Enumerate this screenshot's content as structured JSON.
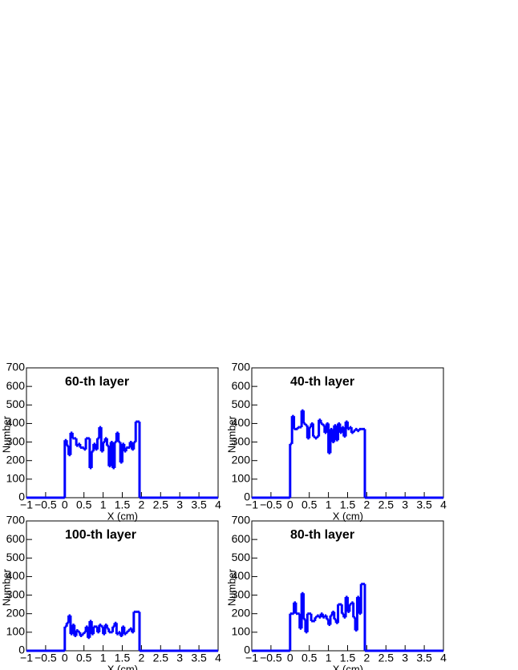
{
  "chart_data": [
    {
      "type": "histogram",
      "title": "60-th layer",
      "x_label": "X (cm)",
      "y_label": "Number",
      "color": "#0000ff",
      "bins": [
        -1,
        0,
        0.05,
        0.1,
        0.15,
        0.2,
        0.25,
        0.3,
        0.35,
        0.4,
        0.45,
        0.5,
        0.55,
        0.6,
        0.65,
        0.7,
        0.75,
        0.8,
        0.85,
        0.9,
        0.95,
        1,
        1.05,
        1.1,
        1.15,
        1.2,
        1.25,
        1.3,
        1.35,
        1.4,
        1.45,
        1.5,
        1.55,
        1.6,
        1.65,
        1.7,
        1.75,
        1.8,
        1.85,
        1.9,
        1.95,
        4
      ],
      "values": [
        0,
        310,
        280,
        230,
        350,
        320,
        320,
        280,
        290,
        270,
        270,
        260,
        320,
        320,
        160,
        250,
        290,
        260,
        320,
        380,
        250,
        300,
        320,
        280,
        170,
        300,
        160,
        300,
        350,
        300,
        190,
        290,
        250,
        270,
        270,
        300,
        260,
        300,
        410,
        410,
        0
      ],
      "xlim": [
        -1,
        4
      ],
      "ylim": [
        0,
        700
      ],
      "xticks": [
        {
          "value": -1,
          "label": "−1"
        },
        {
          "value": -0.5,
          "label": "−0.5"
        },
        0,
        0.5,
        1,
        1.5,
        2,
        2.5,
        3,
        3.5,
        4
      ],
      "yticks": [
        0,
        100,
        200,
        300,
        400,
        500,
        600,
        700
      ]
    },
    {
      "type": "histogram",
      "title": "40-th layer",
      "x_label": "X (cm)",
      "y_label": "Number",
      "color": "#0000ff",
      "bins": [
        -1,
        0,
        0.05,
        0.1,
        0.15,
        0.2,
        0.25,
        0.3,
        0.35,
        0.4,
        0.45,
        0.5,
        0.55,
        0.6,
        0.65,
        0.7,
        0.75,
        0.8,
        0.85,
        0.9,
        0.95,
        1,
        1.05,
        1.1,
        1.15,
        1.2,
        1.25,
        1.3,
        1.35,
        1.4,
        1.45,
        1.5,
        1.55,
        1.6,
        1.65,
        1.7,
        1.75,
        1.8,
        1.85,
        1.9,
        1.95,
        4
      ],
      "values": [
        0,
        290,
        440,
        370,
        370,
        380,
        380,
        470,
        400,
        390,
        320,
        380,
        400,
        330,
        320,
        330,
        420,
        400,
        390,
        350,
        400,
        240,
        370,
        300,
        390,
        310,
        400,
        350,
        380,
        330,
        410,
        370,
        380,
        350,
        360,
        370,
        360,
        370,
        370,
        370,
        0
      ],
      "xlim": [
        -1,
        4
      ],
      "ylim": [
        0,
        700
      ],
      "xticks": [
        {
          "value": -1,
          "label": "−1"
        },
        {
          "value": -0.5,
          "label": "−0.5"
        },
        0,
        0.5,
        1,
        1.5,
        2,
        2.5,
        3,
        3.5,
        4
      ],
      "yticks": [
        0,
        100,
        200,
        300,
        400,
        500,
        600,
        700
      ]
    },
    {
      "type": "histogram",
      "title": "100-th layer",
      "x_label": "X (cm)",
      "y_label": "Number",
      "color": "#0000ff",
      "bins": [
        -1,
        0,
        0.05,
        0.1,
        0.15,
        0.2,
        0.25,
        0.3,
        0.35,
        0.4,
        0.45,
        0.5,
        0.55,
        0.6,
        0.65,
        0.7,
        0.75,
        0.8,
        0.85,
        0.9,
        0.95,
        1,
        1.05,
        1.1,
        1.15,
        1.2,
        1.25,
        1.3,
        1.35,
        1.4,
        1.45,
        1.5,
        1.55,
        1.6,
        1.65,
        1.7,
        1.75,
        1.8,
        1.85,
        1.9,
        1.95,
        4
      ],
      "values": [
        0,
        130,
        150,
        190,
        90,
        140,
        80,
        110,
        100,
        80,
        90,
        100,
        130,
        70,
        160,
        90,
        130,
        130,
        100,
        140,
        130,
        90,
        140,
        120,
        100,
        100,
        130,
        150,
        90,
        100,
        80,
        130,
        90,
        100,
        110,
        120,
        100,
        210,
        210,
        210,
        0
      ],
      "xlim": [
        -1,
        4
      ],
      "ylim": [
        0,
        700
      ],
      "xticks": [
        {
          "value": -1,
          "label": "−1"
        },
        {
          "value": -0.5,
          "label": "−0.5"
        },
        0,
        0.5,
        1,
        1.5,
        2,
        2.5,
        3,
        3.5,
        4
      ],
      "yticks": [
        0,
        100,
        200,
        300,
        400,
        500,
        600,
        700
      ]
    },
    {
      "type": "histogram",
      "title": "80-th layer",
      "x_label": "X (cm)",
      "y_label": "Number",
      "color": "#0000ff",
      "bins": [
        -1,
        0,
        0.05,
        0.1,
        0.15,
        0.2,
        0.25,
        0.3,
        0.35,
        0.4,
        0.45,
        0.5,
        0.55,
        0.6,
        0.65,
        0.7,
        0.75,
        0.8,
        0.85,
        0.9,
        0.95,
        1,
        1.05,
        1.1,
        1.15,
        1.2,
        1.25,
        1.3,
        1.35,
        1.4,
        1.45,
        1.5,
        1.55,
        1.6,
        1.65,
        1.7,
        1.75,
        1.8,
        1.85,
        1.9,
        1.95,
        4
      ],
      "values": [
        0,
        200,
        200,
        260,
        200,
        200,
        120,
        310,
        170,
        100,
        200,
        200,
        160,
        160,
        180,
        190,
        180,
        200,
        180,
        190,
        170,
        140,
        190,
        210,
        170,
        150,
        250,
        250,
        200,
        180,
        290,
        210,
        250,
        260,
        180,
        110,
        290,
        200,
        360,
        360,
        0
      ],
      "xlim": [
        -1,
        4
      ],
      "ylim": [
        0,
        700
      ],
      "xticks": [
        {
          "value": -1,
          "label": "−1"
        },
        {
          "value": -0.5,
          "label": "−0.5"
        },
        0,
        0.5,
        1,
        1.5,
        2,
        2.5,
        3,
        3.5,
        4
      ],
      "yticks": [
        0,
        100,
        200,
        300,
        400,
        500,
        600,
        700
      ]
    }
  ]
}
